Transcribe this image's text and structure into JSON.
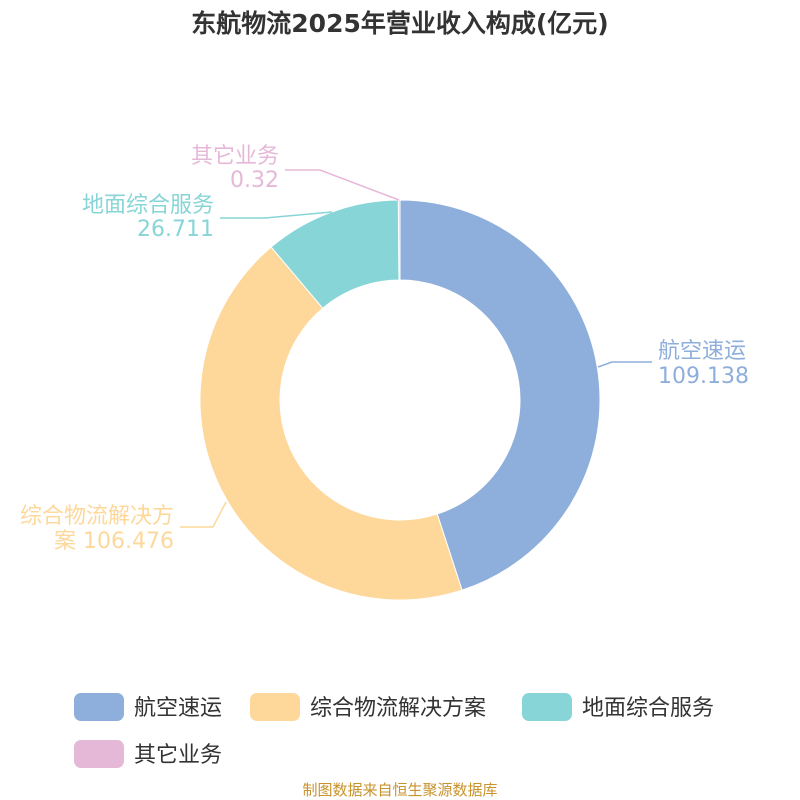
{
  "chart_data": {
    "type": "pie",
    "donut": true,
    "title": "东航物流2025年营业收入构成(亿元)",
    "categories": [
      "航空速运",
      "综合物流解决方案",
      "地面综合服务",
      "其它业务"
    ],
    "values": [
      109.138,
      106.476,
      26.711,
      0.32
    ],
    "value_labels": [
      "109.138",
      "106.476",
      "26.711",
      "0.32"
    ],
    "colors": [
      "#8eaedb",
      "#fed89b",
      "#87d5d7",
      "#e6b8d8"
    ],
    "legend": {
      "placement": "bottom",
      "items": [
        "航空速运",
        "综合物流解决方案",
        "地面综合服务",
        "其它业务"
      ]
    }
  },
  "source": "制图数据来自恒生聚源数据库"
}
